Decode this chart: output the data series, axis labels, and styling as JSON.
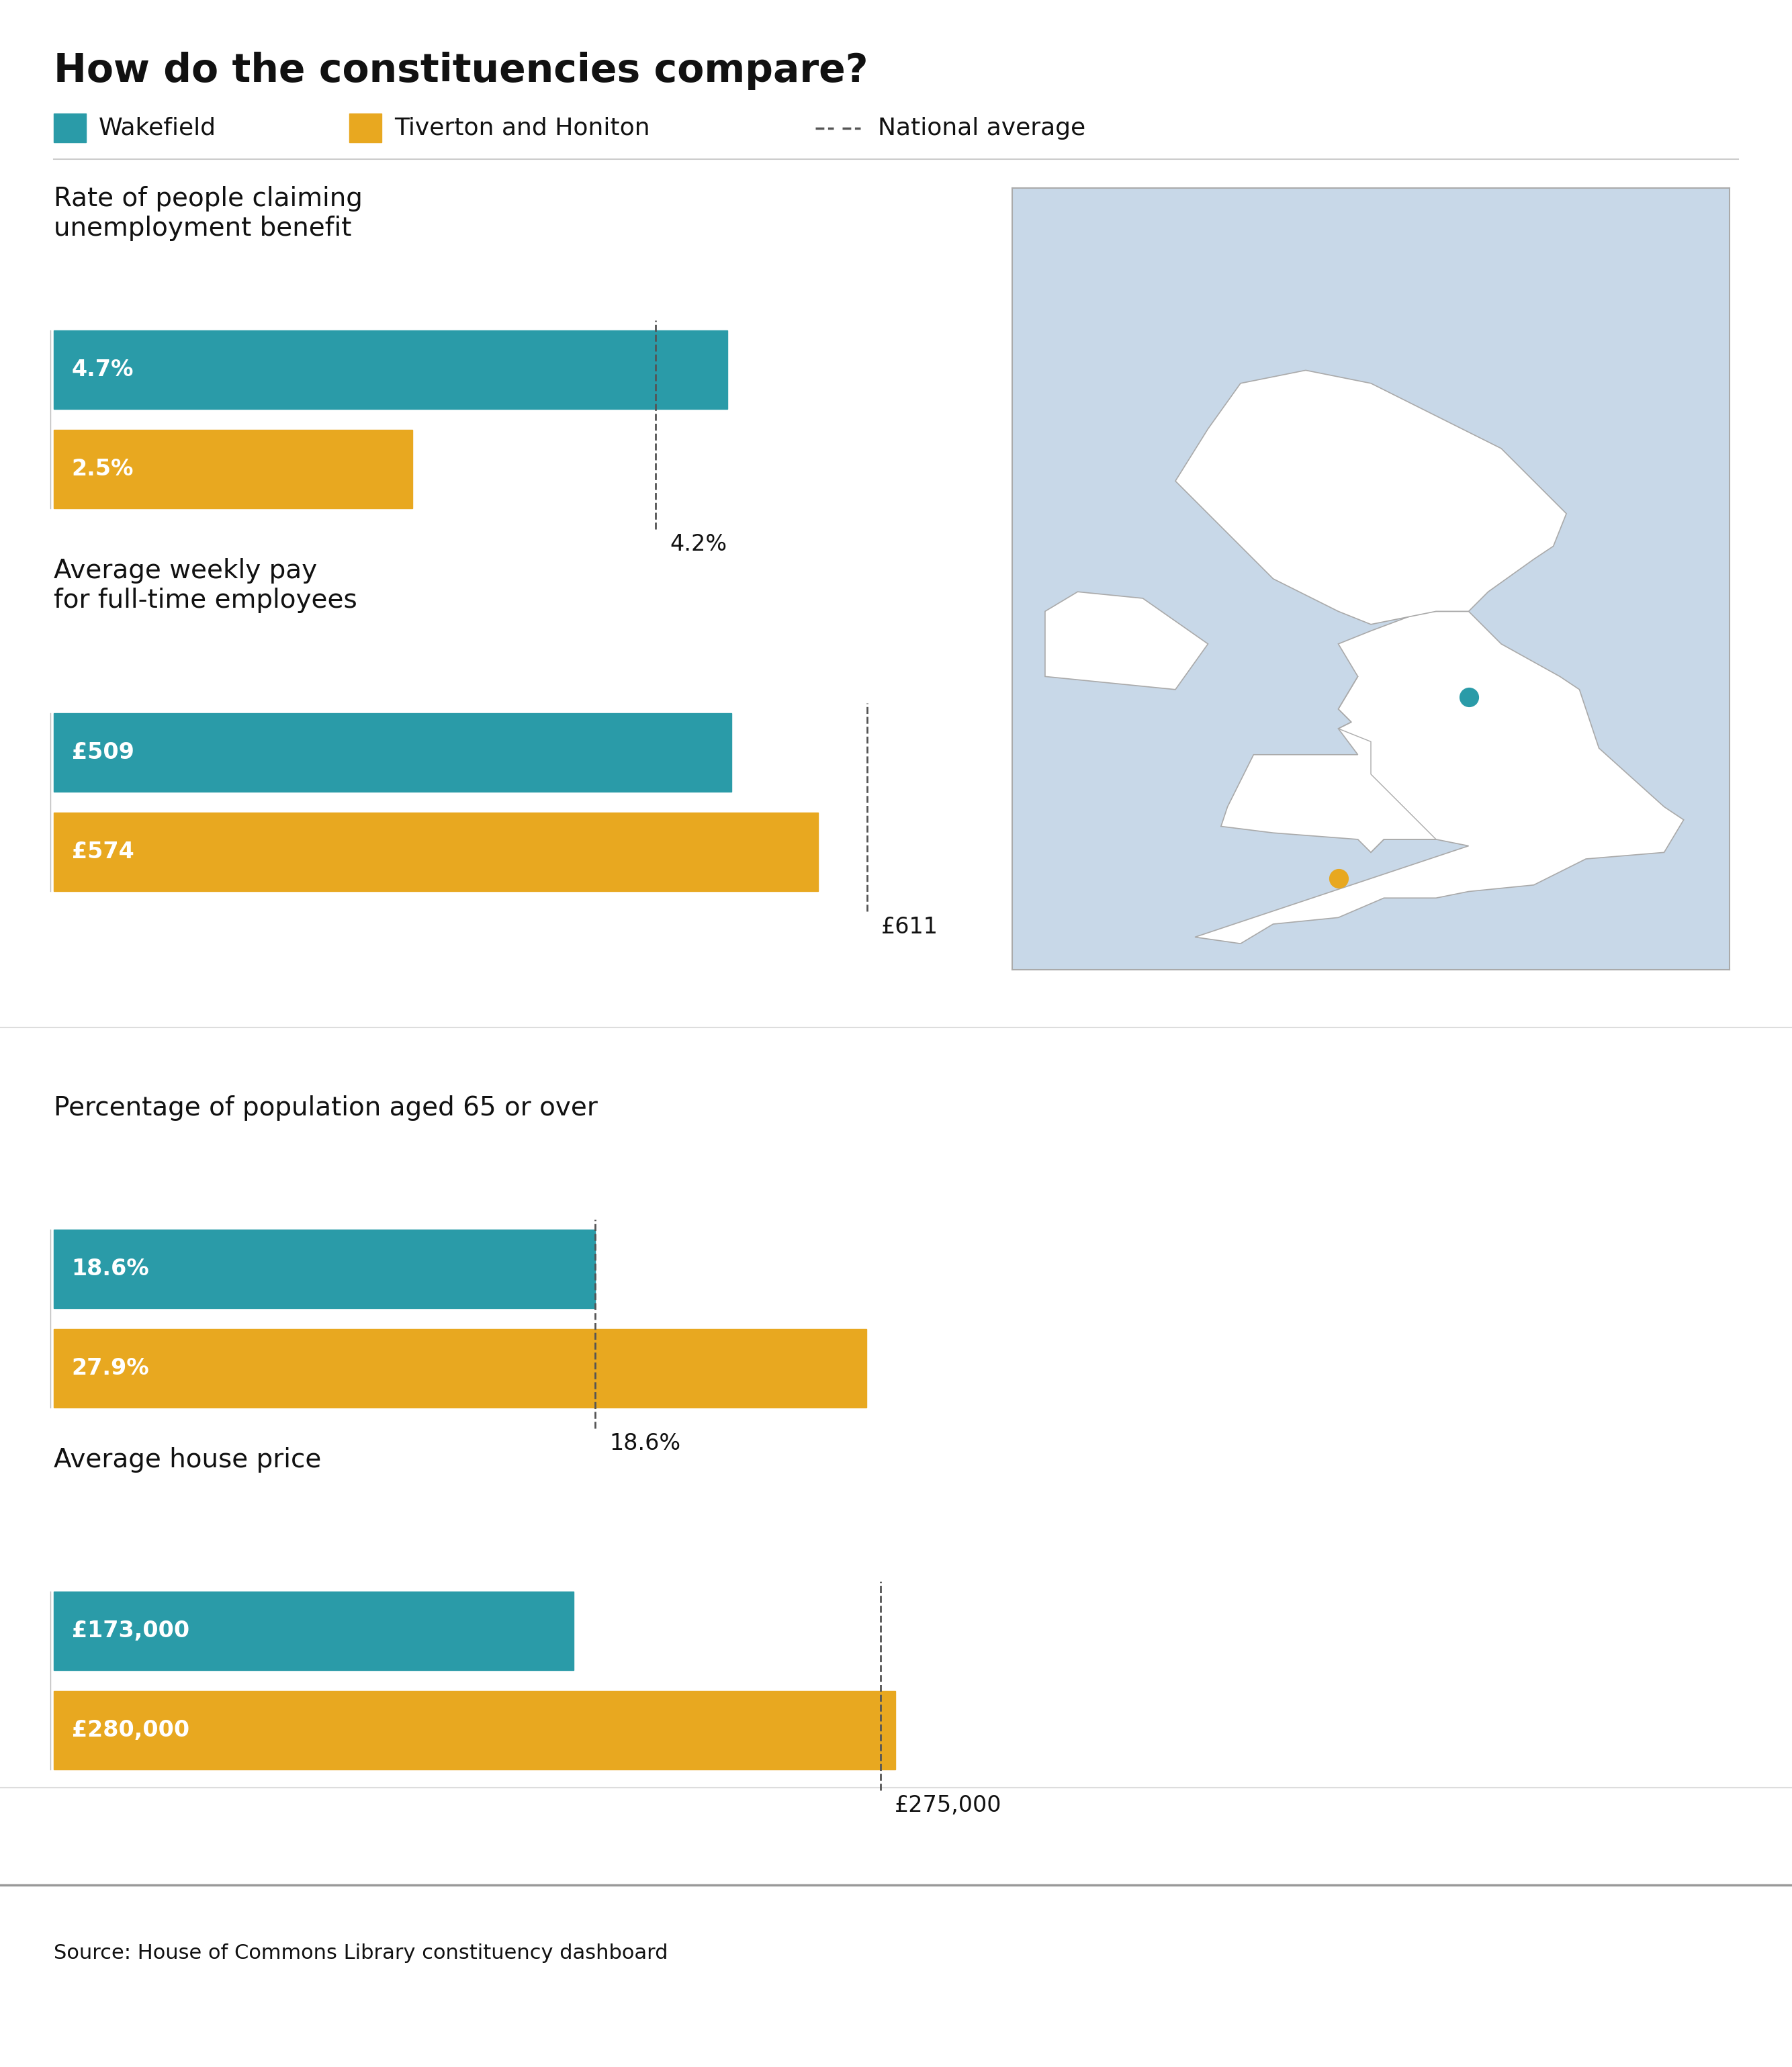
{
  "title": "How do the constituencies compare?",
  "wakefield_color": "#2a9ba8",
  "tiverton_color": "#e8a820",
  "national_color": "#555555",
  "legend_wakefield": "Wakefield",
  "legend_tiverton": "Tiverton and Honiton",
  "legend_national": "National average",
  "sections": [
    {
      "title": "Rate of people claiming\nunemployment benefit",
      "wakefield_val": 4.7,
      "tiverton_val": 2.5,
      "national_avg": 4.2,
      "max_val": 6.5,
      "wakefield_label": "4.7%",
      "tiverton_label": "2.5%",
      "national_label": "4.2%"
    },
    {
      "title": "Average weekly pay\nfor full-time employees",
      "wakefield_val": 509,
      "tiverton_val": 574,
      "national_avg": 611,
      "max_val": 700,
      "wakefield_label": "£509",
      "tiverton_label": "£574",
      "national_label": "£611"
    },
    {
      "title": "Percentage of population aged 65 or over",
      "wakefield_val": 18.6,
      "tiverton_val": 27.9,
      "national_avg": 18.6,
      "max_val": 32.0,
      "wakefield_label": "18.6%",
      "tiverton_label": "27.9%",
      "national_label": "18.6%"
    },
    {
      "title": "Average house price",
      "wakefield_val": 173000,
      "tiverton_val": 280000,
      "national_avg": 275000,
      "max_val": 310000,
      "wakefield_label": "£173,000",
      "tiverton_label": "£280,000",
      "national_label": "£275,000"
    }
  ],
  "source_text": "Source: House of Commons Library constituency dashboard",
  "bg_color": "#ffffff",
  "map_sea_color": "#c8d8e8",
  "map_land_color": "#ffffff",
  "map_border_color": "#aaaaaa"
}
